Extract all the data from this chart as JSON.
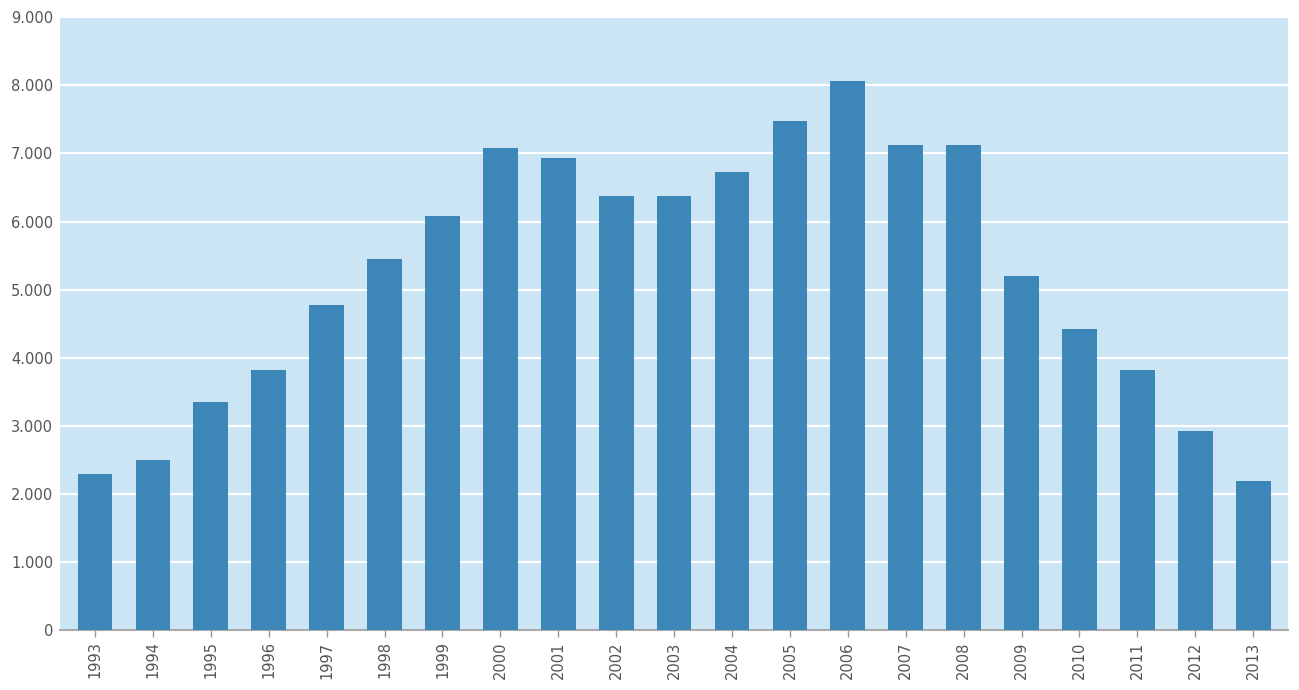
{
  "years": [
    "1993",
    "1994",
    "1995",
    "1996",
    "1997",
    "1998",
    "1999",
    "2000",
    "2001",
    "2002",
    "2003",
    "2004",
    "2005",
    "2006",
    "2007",
    "2008",
    "2009",
    "2010",
    "2011",
    "2012",
    "2013"
  ],
  "values": [
    2300,
    2500,
    3350,
    3820,
    4780,
    5450,
    6080,
    7080,
    6930,
    6380,
    6380,
    6730,
    7480,
    8060,
    7120,
    7130,
    5200,
    4420,
    3820,
    2920,
    2190
  ],
  "bar_color": "#3d86b8",
  "figure_bg_color": "#ffffff",
  "plot_bg_color": "#cce5f5",
  "ylim": [
    0,
    9000
  ],
  "yticks": [
    0,
    1000,
    2000,
    3000,
    4000,
    5000,
    6000,
    7000,
    8000,
    9000
  ],
  "ytick_labels": [
    "0",
    "1.000",
    "2.000",
    "3.000",
    "4.000",
    "5.000",
    "6.000",
    "7.000",
    "8.000",
    "9.000"
  ],
  "grid_color": "#ffffff",
  "tick_label_color": "#555555",
  "bar_width": 0.6,
  "figsize": [
    12.99,
    6.9
  ],
  "dpi": 100
}
